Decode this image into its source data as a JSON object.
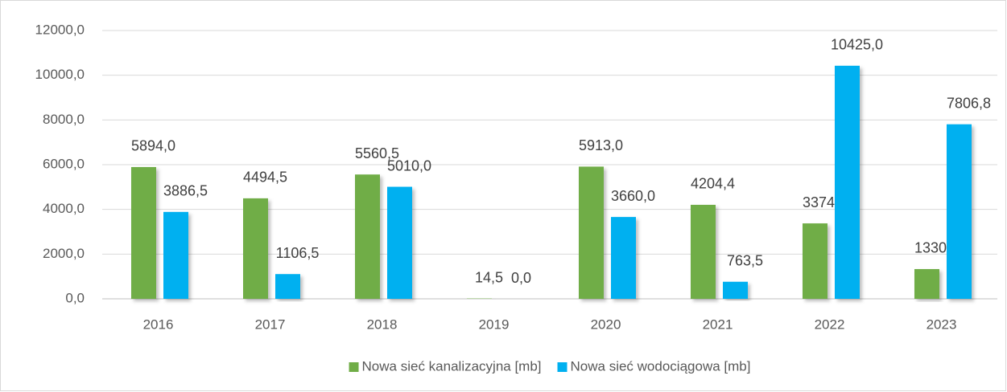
{
  "chart_data": {
    "type": "bar",
    "categories": [
      "2016",
      "2017",
      "2018",
      "2019",
      "2020",
      "2021",
      "2022",
      "2023"
    ],
    "series": [
      {
        "name": "Nowa sieć kanalizacyjna [mb]",
        "color": "#70ad47",
        "values": [
          5894.0,
          4494.5,
          5560.5,
          14.5,
          5913.0,
          4204.4,
          3374.0,
          1330.7
        ],
        "value_labels": [
          "5894,0",
          "4494,5",
          "5560,5",
          "14,5",
          "5913,0",
          "4204,4",
          "3374,0",
          "1330,7"
        ]
      },
      {
        "name": "Nowa sieć wodociągowa [mb]",
        "color": "#00b0f0",
        "values": [
          3886.5,
          1106.5,
          5010.0,
          0.0,
          3660.0,
          763.5,
          10425.0,
          7806.8
        ],
        "value_labels": [
          "3886,5",
          "1106,5",
          "5010,0",
          "0,0",
          "3660,0",
          "763,5",
          "10425,0",
          "7806,8"
        ]
      }
    ],
    "ylim": [
      0,
      12000
    ],
    "yticks": [
      {
        "value": 0,
        "label": "0,0"
      },
      {
        "value": 2000,
        "label": "2000,0"
      },
      {
        "value": 4000,
        "label": "4000,0"
      },
      {
        "value": 6000,
        "label": "6000,0"
      },
      {
        "value": 8000,
        "label": "8000,0"
      },
      {
        "value": 10000,
        "label": "10000,0"
      },
      {
        "value": 12000,
        "label": "12000,0"
      }
    ],
    "grid": true,
    "legend": "bottom"
  }
}
